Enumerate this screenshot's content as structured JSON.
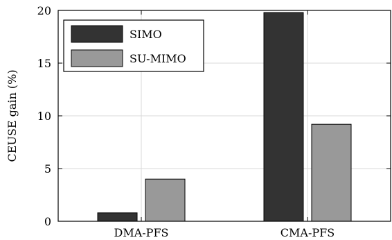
{
  "chart_data": {
    "type": "bar",
    "categories": [
      "DMA-PFS",
      "CMA-PFS"
    ],
    "series": [
      {
        "name": "SIMO",
        "values": [
          0.8,
          19.8
        ],
        "color": "#333333"
      },
      {
        "name": "SU-MIMO",
        "values": [
          4.0,
          9.2
        ],
        "color": "#999999"
      }
    ],
    "ylabel": "CEUSE gain (%)",
    "xlabel": "",
    "ylim": [
      0,
      20
    ],
    "yticks": [
      "0",
      "5",
      "10",
      "15",
      "20"
    ],
    "grid": true,
    "legend_position": "top-left"
  }
}
